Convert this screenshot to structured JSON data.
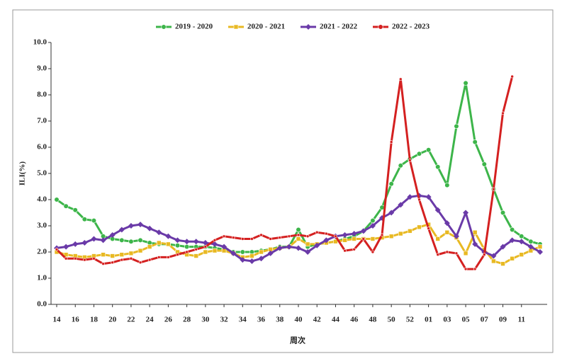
{
  "chart_data": {
    "type": "line",
    "y_label": "ILI(%)",
    "x_label": "周次",
    "categories": [
      "14",
      null,
      "16",
      null,
      "18",
      null,
      "20",
      null,
      "22",
      null,
      "24",
      null,
      "26",
      null,
      "28",
      null,
      "30",
      null,
      "32",
      null,
      "34",
      null,
      "36",
      null,
      "38",
      null,
      "40",
      null,
      "42",
      null,
      "44",
      null,
      "46",
      null,
      "48",
      null,
      "50",
      null,
      "52",
      null,
      "01",
      null,
      "03",
      null,
      "05",
      null,
      "07",
      null,
      "09",
      null,
      "11",
      null,
      null
    ],
    "ylim": [
      0,
      10
    ],
    "yticks": [
      {
        "value": 0,
        "label": "0.0"
      },
      {
        "value": 1,
        "label": "1.0"
      },
      {
        "value": 2,
        "label": "2.0"
      },
      {
        "value": 3,
        "label": "3.0"
      },
      {
        "value": 4,
        "label": "4.0"
      },
      {
        "value": 5,
        "label": "5.0"
      },
      {
        "value": 6,
        "label": "6.0"
      },
      {
        "value": 7,
        "label": "7.0"
      },
      {
        "value": 8,
        "label": "8.0"
      },
      {
        "value": 9,
        "label": "9.0"
      },
      {
        "value": 10,
        "label": "10.0"
      }
    ],
    "grid": false,
    "legend": "top",
    "series": [
      {
        "name": "2019 - 2020",
        "color": "#3db54a",
        "marker": "circle",
        "values": [
          4.0,
          3.75,
          3.6,
          3.25,
          3.2,
          2.6,
          2.5,
          2.45,
          2.4,
          2.45,
          2.35,
          2.3,
          2.3,
          2.25,
          2.2,
          2.2,
          2.2,
          2.15,
          2.1,
          2.0,
          2.0,
          2.0,
          2.05,
          2.1,
          2.2,
          2.2,
          2.85,
          2.2,
          2.3,
          2.35,
          2.4,
          2.5,
          2.6,
          2.8,
          3.2,
          3.7,
          4.6,
          5.3,
          5.55,
          5.75,
          5.9,
          5.25,
          4.55,
          6.8,
          8.45,
          6.2,
          5.35,
          4.4,
          3.5,
          2.85,
          2.6,
          2.4,
          2.3
        ]
      },
      {
        "name": "2020 - 2021",
        "color": "#e8b923",
        "marker": "square",
        "values": [
          2.0,
          1.9,
          1.85,
          1.8,
          1.85,
          1.9,
          1.85,
          1.9,
          1.95,
          2.05,
          2.2,
          2.35,
          2.3,
          2.0,
          1.9,
          1.85,
          2.0,
          2.05,
          2.05,
          1.95,
          1.8,
          1.85,
          2.0,
          2.1,
          2.15,
          2.2,
          2.5,
          2.3,
          2.3,
          2.35,
          2.4,
          2.45,
          2.5,
          2.5,
          2.5,
          2.55,
          2.6,
          2.7,
          2.8,
          2.95,
          3.05,
          2.5,
          2.75,
          2.55,
          1.95,
          2.75,
          2.1,
          1.65,
          1.55,
          1.75,
          1.9,
          2.05,
          2.2
        ]
      },
      {
        "name": "2021 - 2022",
        "color": "#6a3aa8",
        "marker": "diamond",
        "values": [
          2.15,
          2.2,
          2.3,
          2.35,
          2.5,
          2.45,
          2.65,
          2.85,
          3.0,
          3.05,
          2.9,
          2.75,
          2.6,
          2.45,
          2.4,
          2.4,
          2.35,
          2.3,
          2.2,
          1.95,
          1.7,
          1.65,
          1.75,
          1.95,
          2.15,
          2.2,
          2.15,
          2.0,
          2.25,
          2.45,
          2.6,
          2.65,
          2.7,
          2.8,
          3.0,
          3.3,
          3.5,
          3.8,
          4.1,
          4.15,
          4.1,
          3.6,
          3.1,
          2.6,
          3.5,
          2.3,
          2.0,
          1.85,
          2.2,
          2.45,
          2.4,
          2.2,
          2.0
        ]
      },
      {
        "name": "2022 - 2023",
        "color": "#d42020",
        "marker": "dot",
        "values": [
          2.1,
          1.75,
          1.75,
          1.7,
          1.75,
          1.55,
          1.6,
          1.7,
          1.75,
          1.6,
          1.7,
          1.8,
          1.8,
          1.9,
          2.0,
          2.1,
          2.2,
          2.45,
          2.6,
          2.55,
          2.5,
          2.5,
          2.65,
          2.5,
          2.55,
          2.6,
          2.65,
          2.6,
          2.75,
          2.7,
          2.6,
          2.05,
          2.1,
          2.5,
          2.0,
          2.65,
          6.2,
          8.6,
          5.5,
          4.0,
          2.9,
          1.9,
          2.0,
          1.95,
          1.35,
          1.35,
          1.9,
          4.4,
          7.3,
          8.7,
          null,
          null,
          null
        ]
      }
    ]
  }
}
